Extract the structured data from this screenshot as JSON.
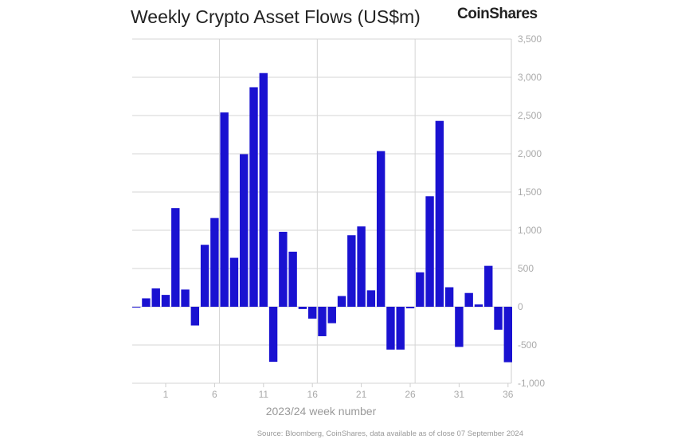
{
  "chart_data": {
    "type": "bar",
    "title": "Weekly Crypto Asset Flows (US$m)",
    "brand": "CoinShares",
    "xlabel": "2023/24 week number",
    "ylabel": "",
    "source": "Source: Bloomberg, CoinShares, data available as of close 07 September 2024",
    "ylim": [
      -1000,
      3500
    ],
    "yticks": [
      -1000,
      -500,
      0,
      500,
      1000,
      1500,
      2000,
      2500,
      3000,
      3500
    ],
    "ytick_labels": [
      "-1,000",
      "-500",
      "0",
      "500",
      "1,000",
      "1,500",
      "2,000",
      "2,500",
      "3,000",
      "3,500"
    ],
    "xtick_labels": [
      "1",
      "6",
      "11",
      "16",
      "21",
      "26",
      "31",
      "36"
    ],
    "grid": true,
    "bar_color": "#1a12d1",
    "categories": [
      -2,
      -1,
      0,
      1,
      2,
      3,
      4,
      5,
      6,
      7,
      8,
      9,
      10,
      11,
      12,
      13,
      14,
      15,
      16,
      17,
      18,
      19,
      20,
      21,
      22,
      23,
      24,
      25,
      26,
      27,
      28,
      29,
      30,
      31,
      32,
      33,
      34,
      35,
      36
    ],
    "values": [
      -5,
      110,
      240,
      155,
      1290,
      225,
      -245,
      810,
      1160,
      2540,
      640,
      1995,
      2870,
      3055,
      -720,
      980,
      720,
      -30,
      -155,
      -385,
      -215,
      140,
      935,
      1050,
      215,
      2035,
      -560,
      -560,
      -20,
      450,
      1445,
      2430,
      255,
      -525,
      180,
      30,
      535,
      -300,
      -725
    ]
  }
}
